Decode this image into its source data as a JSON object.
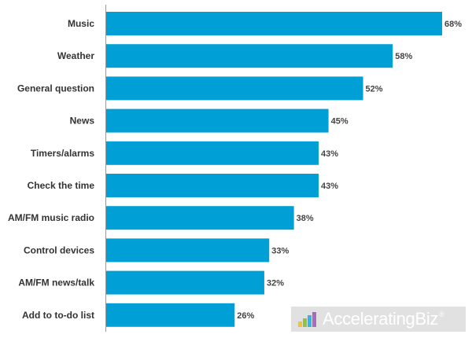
{
  "chart_data": {
    "type": "bar",
    "orientation": "horizontal",
    "categories": [
      "Music",
      "Weather",
      "General question",
      "News",
      "Timers/alarms",
      "Check the time",
      "AM/FM music radio",
      "Control devices",
      "AM/FM news/talk",
      "Add to to-do list"
    ],
    "values": [
      68,
      58,
      52,
      45,
      43,
      43,
      38,
      33,
      32,
      26
    ],
    "value_labels": [
      "68%",
      "58%",
      "52%",
      "45%",
      "43%",
      "43%",
      "38%",
      "33%",
      "32%",
      "26%"
    ],
    "xlim": [
      0,
      70
    ],
    "grid": false,
    "legend": "none",
    "bar_color": "#009fd6"
  },
  "watermark": {
    "text": "AcceleratingBiz",
    "registered_mark": "®",
    "icon": "chart-logo-icon"
  }
}
